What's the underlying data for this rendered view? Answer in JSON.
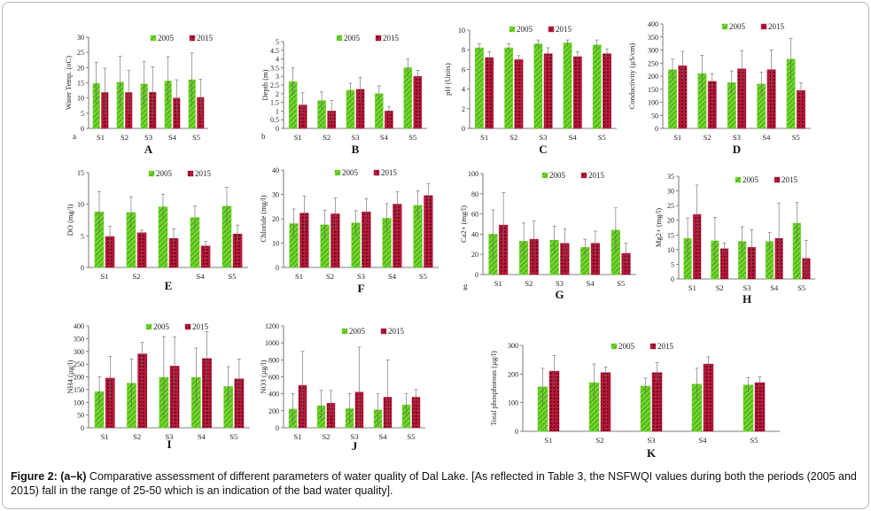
{
  "caption": {
    "label": "Figure 2: (a–k)",
    "text": " Comparative assessment of different parameters of water quality of Dal Lake. [As reflected in Table 3, the NSFWQI values during both the periods (2005 and 2015) fall in the range of 25-50 which is an indication of the bad water quality]."
  },
  "colors": {
    "series_2005": "#6fd62a",
    "series_2005_hatch": "#2f7a0e",
    "series_2015": "#b8183a",
    "series_2015_dots": "#3a0610"
  },
  "chart_data": [
    {
      "id": "A",
      "type": "bar",
      "lower": "a",
      "title": "A",
      "ylabel": "Water Temp. (oC)",
      "categories": [
        "S1",
        "S2",
        "S3",
        "S4",
        "S5"
      ],
      "ylim": [
        0,
        30
      ],
      "yticks": [
        0,
        5,
        10,
        15,
        20,
        25,
        30
      ],
      "series": [
        {
          "name": "2005",
          "values": [
            14.8,
            15.2,
            14.6,
            15.6,
            16.0
          ],
          "errors": [
            7,
            8.5,
            7.5,
            8,
            8.8
          ]
        },
        {
          "name": "2015",
          "values": [
            11.8,
            11.8,
            11.9,
            10.0,
            10.2
          ],
          "errors": [
            8,
            7.2,
            8.3,
            6,
            6
          ]
        }
      ]
    },
    {
      "id": "B",
      "type": "bar",
      "lower": "b",
      "title": "B",
      "ylabel": "Depth (m)",
      "categories": [
        "S1",
        "S2",
        "S3",
        "S4",
        "S5"
      ],
      "ylim": [
        0,
        5
      ],
      "yticks": [
        0,
        0.5,
        1,
        1.5,
        2,
        2.5,
        3,
        3.5,
        4,
        4.5,
        5
      ],
      "series": [
        {
          "name": "2005",
          "values": [
            2.7,
            1.6,
            2.2,
            2.0,
            3.5
          ],
          "errors": [
            0.8,
            0.5,
            0.4,
            0.45,
            0.5
          ]
        },
        {
          "name": "2015",
          "values": [
            1.35,
            1.0,
            2.25,
            1.0,
            3.0
          ],
          "errors": [
            0.7,
            0.6,
            0.7,
            0.25,
            0.35
          ]
        }
      ]
    },
    {
      "id": "C",
      "type": "bar",
      "lower": "",
      "title": "C",
      "ylabel": "pH (Units)",
      "categories": [
        "S1",
        "S2",
        "S3",
        "S4",
        "S5"
      ],
      "ylim": [
        0,
        10
      ],
      "yticks": [
        0,
        2,
        4,
        6,
        8,
        10
      ],
      "series": [
        {
          "name": "2005",
          "values": [
            8.2,
            8.2,
            8.6,
            8.7,
            8.5
          ],
          "errors": [
            0.4,
            0.4,
            0.4,
            0.3,
            0.5
          ]
        },
        {
          "name": "2015",
          "values": [
            7.2,
            7.0,
            7.6,
            7.3,
            7.6
          ],
          "errors": [
            0.6,
            0.4,
            0.6,
            0.5,
            0.5
          ]
        }
      ]
    },
    {
      "id": "D",
      "type": "bar",
      "lower": "",
      "title": "D",
      "ylabel": "Conductivity (µS/cm)",
      "categories": [
        "S1",
        "S2",
        "S3",
        "S4",
        "S5"
      ],
      "ylim": [
        0,
        400
      ],
      "yticks": [
        0,
        50,
        100,
        150,
        200,
        250,
        300,
        350,
        400
      ],
      "series": [
        {
          "name": "2005",
          "values": [
            225,
            210,
            175,
            170,
            265
          ],
          "errors": [
            40,
            70,
            45,
            45,
            80
          ]
        },
        {
          "name": "2015",
          "values": [
            240,
            180,
            228,
            225,
            145
          ],
          "errors": [
            55,
            30,
            70,
            75,
            30
          ]
        }
      ]
    },
    {
      "id": "E",
      "type": "bar",
      "lower": "",
      "title": "E",
      "ylabel": "DO (mg/l)",
      "categories": [
        "S1",
        "S2",
        "",
        "S4",
        "S5"
      ],
      "ylim": [
        0,
        15
      ],
      "yticks": [
        0,
        5,
        10,
        15
      ],
      "series": [
        {
          "name": "2005",
          "values": [
            8.8,
            8.7,
            9.6,
            7.9,
            9.7
          ],
          "errors": [
            3.2,
            2.5,
            2.0,
            1.8,
            3.0
          ]
        },
        {
          "name": "2015",
          "values": [
            4.9,
            5.5,
            4.6,
            3.4,
            5.3
          ],
          "errors": [
            1.6,
            0.4,
            1.5,
            0.7,
            1.4
          ]
        }
      ]
    },
    {
      "id": "F",
      "type": "bar",
      "lower": "",
      "title": "F",
      "ylabel": "Chloride (mg/l)",
      "categories": [
        "S1",
        "S2",
        "S3",
        "S4",
        "S5"
      ],
      "ylim": [
        0,
        40
      ],
      "yticks": [
        0,
        10,
        20,
        30,
        40
      ],
      "series": [
        {
          "name": "2005",
          "values": [
            18,
            17.5,
            18.3,
            20.2,
            25.5
          ],
          "errors": [
            6,
            6,
            5,
            6,
            6
          ]
        },
        {
          "name": "2015",
          "values": [
            22.3,
            22,
            22.8,
            26,
            29.5
          ],
          "errors": [
            7,
            6.5,
            5.5,
            5,
            5
          ]
        }
      ]
    },
    {
      "id": "G",
      "type": "bar",
      "lower": "g",
      "title": "G",
      "ylabel": "Ca2+ (mg/l)",
      "categories": [
        "S1",
        "S2",
        "S3",
        "S4",
        "S5"
      ],
      "ylim": [
        0,
        100
      ],
      "yticks": [
        0,
        20,
        40,
        60,
        80,
        100
      ],
      "series": [
        {
          "name": "2005",
          "values": [
            40,
            33,
            34,
            27,
            44
          ],
          "errors": [
            24,
            18,
            14,
            8,
            22
          ]
        },
        {
          "name": "2015",
          "values": [
            49,
            35,
            31,
            31,
            21
          ],
          "errors": [
            32,
            18,
            14,
            12,
            10
          ]
        }
      ]
    },
    {
      "id": "H",
      "type": "bar",
      "lower": "",
      "title": "H",
      "ylabel": "Mg2+ (mg/l)",
      "categories": [
        "S1",
        "S2",
        "S3",
        "S4",
        "S5"
      ],
      "ylim": [
        0,
        35
      ],
      "yticks": [
        0,
        5,
        10,
        15,
        20,
        25,
        30,
        35
      ],
      "series": [
        {
          "name": "2005",
          "values": [
            13.8,
            13.0,
            12.8,
            12.8,
            19.0
          ],
          "errors": [
            7,
            8,
            5,
            3,
            7
          ]
        },
        {
          "name": "2015",
          "values": [
            22.0,
            10.3,
            10.8,
            13.8,
            7.0
          ],
          "errors": [
            10,
            2,
            6,
            12,
            6.2
          ]
        }
      ]
    },
    {
      "id": "I",
      "type": "bar",
      "lower": "",
      "title": "I",
      "ylabel": "NH4 (µg/l)",
      "categories": [
        "S1",
        "S2",
        "S3",
        "S4",
        "S5"
      ],
      "ylim": [
        0,
        400
      ],
      "yticks": [
        0,
        50,
        100,
        150,
        200,
        250,
        300,
        350,
        400
      ],
      "series": [
        {
          "name": "2005",
          "values": [
            142,
            175,
            198,
            198,
            162
          ],
          "errors": [
            58,
            95,
            160,
            115,
            78
          ]
        },
        {
          "name": "2015",
          "values": [
            195,
            290,
            242,
            272,
            192
          ],
          "errors": [
            85,
            45,
            115,
            105,
            78
          ]
        }
      ]
    },
    {
      "id": "J",
      "type": "bar",
      "lower": "",
      "title": "J",
      "ylabel": "NO3 (µg/l)",
      "categories": [
        "S1",
        "S2",
        "S3",
        "S4",
        "S5"
      ],
      "ylim": [
        0,
        1200
      ],
      "yticks": [
        0,
        200,
        400,
        600,
        800,
        1000,
        1200
      ],
      "series": [
        {
          "name": "2005",
          "values": [
            220,
            260,
            225,
            210,
            270
          ],
          "errors": [
            180,
            180,
            180,
            190,
            130
          ]
        },
        {
          "name": "2015",
          "values": [
            500,
            290,
            420,
            360,
            360
          ],
          "errors": [
            400,
            150,
            530,
            440,
            90
          ]
        }
      ]
    },
    {
      "id": "K",
      "type": "bar",
      "lower": "",
      "title": "K",
      "ylabel": "Total phosphorous (µg/l)",
      "categories": [
        "S1",
        "S2",
        "S3",
        "S4",
        "S5"
      ],
      "ylim": [
        0,
        300
      ],
      "yticks": [
        0,
        100,
        200,
        300
      ],
      "series": [
        {
          "name": "2005",
          "values": [
            155,
            170,
            158,
            165,
            162
          ],
          "errors": [
            65,
            65,
            28,
            55,
            25
          ]
        },
        {
          "name": "2015",
          "values": [
            210,
            205,
            205,
            235,
            170
          ],
          "errors": [
            55,
            20,
            35,
            25,
            20
          ]
        }
      ]
    }
  ]
}
